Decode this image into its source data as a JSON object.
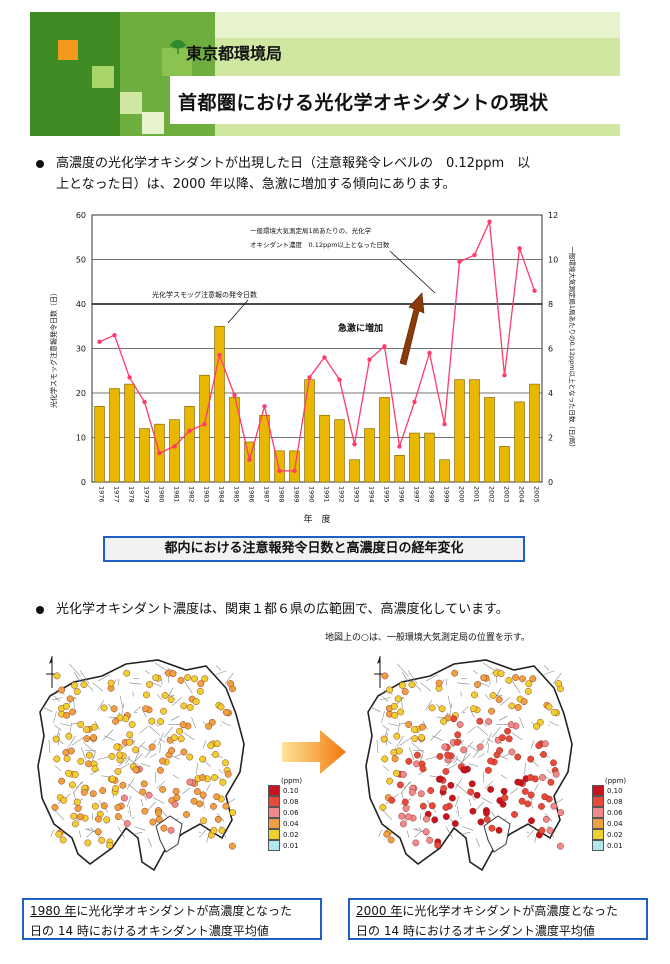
{
  "header": {
    "org": "東京都環境局",
    "title": "首都圏における光化学オキシダントの現状"
  },
  "section1": {
    "text_line1": "高濃度の光化学オキシダントが出現した日（注意報発令レベルの　0.12ppm　以",
    "text_line2": "上となった日）は、2000 年以降、急激に増加する傾向にあります。"
  },
  "chart_data": {
    "type": "bar",
    "categories": [
      "1976",
      "1977",
      "1978",
      "1979",
      "1980",
      "1981",
      "1982",
      "1983",
      "1984",
      "1985",
      "1986",
      "1987",
      "1988",
      "1989",
      "1990",
      "1991",
      "1992",
      "1993",
      "1994",
      "1995",
      "1996",
      "1997",
      "1998",
      "1999",
      "2000",
      "2001",
      "2002",
      "2003",
      "2004",
      "2005"
    ],
    "series": [
      {
        "name": "光化学スモッグ注意報の発令日数",
        "type": "bar",
        "axis": "left",
        "values": [
          17,
          21,
          22,
          12,
          13,
          14,
          17,
          24,
          35,
          19,
          9,
          15,
          7,
          7,
          23,
          15,
          14,
          5,
          12,
          19,
          6,
          11,
          11,
          5,
          23,
          23,
          19,
          8,
          18,
          22
        ]
      },
      {
        "name": "一般環境大気測定局1局あたりの、光化学オキシダント濃度 0.12ppm以上となった日数",
        "type": "line",
        "axis": "right",
        "values": [
          6.3,
          6.6,
          4.7,
          3.6,
          1.3,
          1.6,
          2.3,
          2.6,
          5.7,
          3.9,
          1.0,
          3.4,
          0.5,
          0.5,
          4.7,
          5.6,
          4.6,
          1.7,
          5.5,
          6.1,
          1.6,
          3.6,
          5.8,
          2.6,
          9.9,
          10.2,
          11.7,
          4.8,
          10.5,
          8.6
        ]
      }
    ],
    "ylim": [
      0,
      60
    ],
    "y_ticks": [
      "0",
      "10",
      "20",
      "30",
      "40",
      "50",
      "60"
    ],
    "y2lim": [
      0,
      12
    ],
    "y2_ticks": [
      "0",
      "2",
      "4",
      "6",
      "8",
      "10",
      "12"
    ],
    "xlabel": "年　度",
    "ylabel": "光化学スモッグ注意報発令日数（日）",
    "y2label": "一般環境大気測定局1局あたりの0.12ppm以上となった日数（日/局）",
    "annotations": {
      "bar_note": "光化学スモッグ注意報の発令日数",
      "line_note_1": "一般環境大気測定局1局あたりの、光化学",
      "line_note_2": "オキシダント濃度　0.12ppm以上となった日数",
      "increase": "急激に増加"
    },
    "grid": "horizontal",
    "bar_color": "#e8b800",
    "line_color": "#ff3b6b"
  },
  "chart_caption": "都内における注意報発令日数と高濃度日の経年変化",
  "section2": {
    "text": "光化学オキシダント濃度は、関東１都６県の広範囲で、高濃度化しています。",
    "note": "地図上の○は、一般環境大気測定局の位置を示す。"
  },
  "legend": {
    "unit": "(ppm)",
    "items": [
      {
        "label": "0.10",
        "color": "#c8141e"
      },
      {
        "label": "0.08",
        "color": "#e84a3a"
      },
      {
        "label": "0.06",
        "color": "#f08a8a"
      },
      {
        "label": "0.04",
        "color": "#f0a040"
      },
      {
        "label": "0.02",
        "color": "#f0d030"
      },
      {
        "label": "0.01",
        "color": "#b0e8f0"
      }
    ]
  },
  "maps": {
    "left_caption_year": "1980 年",
    "left_caption_rest1": "に光化学オキシダントが高濃度となった",
    "left_caption_line2": "日の 14 時におけるオキシダント濃度平均値",
    "right_caption_year": "2000 年",
    "right_caption_rest1": "に光化学オキシダントが高濃度となった",
    "right_caption_line2": "日の 14 時におけるオキシダント濃度平均値"
  }
}
